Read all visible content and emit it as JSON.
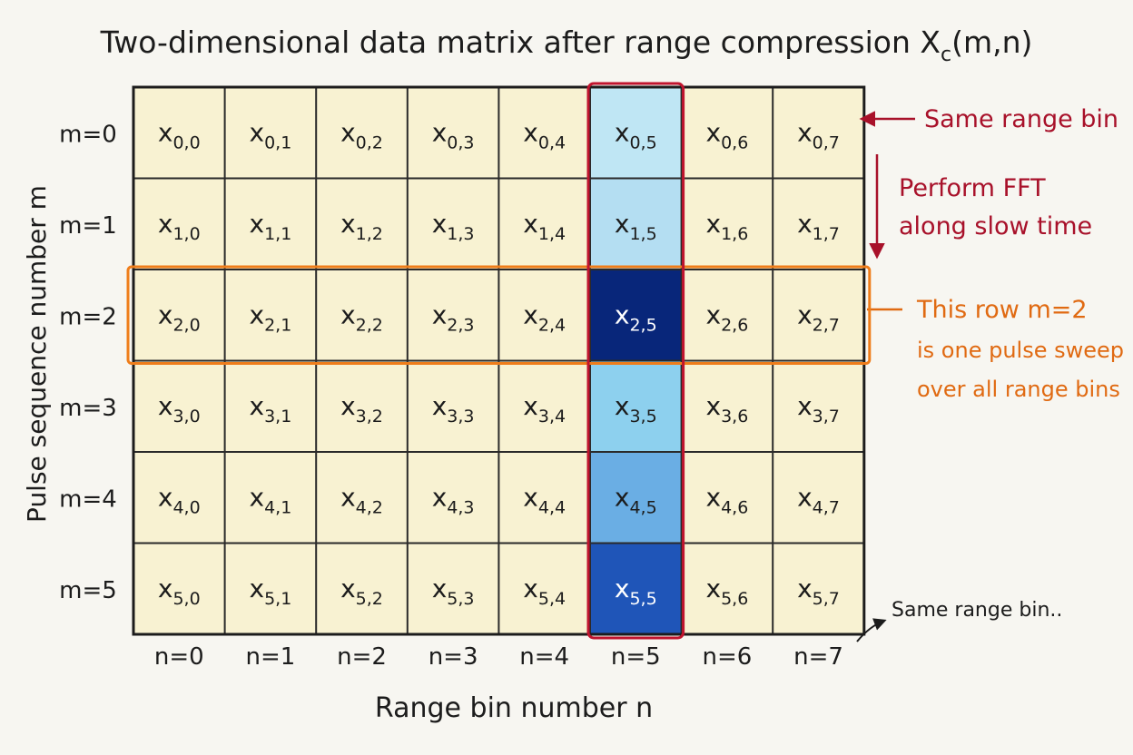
{
  "title": {
    "main": "Two-dimensional data matrix after range compression X",
    "sub": "c",
    "args": "(m,n)"
  },
  "axes": {
    "ylabel": "Pulse sequence number m",
    "xlabel": "Range bin number n"
  },
  "rows": [
    "m=0",
    "m=1",
    "m=2",
    "m=3",
    "m=4",
    "m=5"
  ],
  "cols": [
    "n=0",
    "n=1",
    "n=2",
    "n=3",
    "n=4",
    "n=5",
    "n=6",
    "n=7"
  ],
  "cell_symbol": "x",
  "cells": [
    [
      "0,0",
      "0,1",
      "0,2",
      "0,3",
      "0,4",
      "0,5",
      "0,6",
      "0,7"
    ],
    [
      "1,0",
      "1,1",
      "1,2",
      "1,3",
      "1,4",
      "1,5",
      "1,6",
      "1,7"
    ],
    [
      "2,0",
      "2,1",
      "2,2",
      "2,3",
      "2,4",
      "2,5",
      "2,6",
      "2,7"
    ],
    [
      "3,0",
      "3,1",
      "3,2",
      "3,3",
      "3,4",
      "3,5",
      "3,6",
      "3,7"
    ],
    [
      "4,0",
      "4,1",
      "4,2",
      "4,3",
      "4,4",
      "4,5",
      "4,6",
      "4,7"
    ],
    [
      "5,0",
      "5,1",
      "5,2",
      "5,3",
      "5,4",
      "5,5",
      "5,6",
      "5,7"
    ]
  ],
  "highlight": {
    "column_index": 5,
    "row_index": 2,
    "column_border_color": "#c0142e",
    "row_border_color": "#ef7d1a",
    "column_fill_colors": [
      "#bfe6f4",
      "#b4def2",
      "#08267a",
      "#8dd0ee",
      "#6aaee4",
      "#1f55b8"
    ],
    "light_text_rows": [
      2,
      5
    ],
    "cell_fill_color": "#f8f2d2"
  },
  "annotations": {
    "same_range_bin_top": "Same range bin",
    "fft_line1": "Perform FFT",
    "fft_line2": "along slow time",
    "row_note_line1": "This row m=2",
    "row_note_line2": "is one pulse sweep",
    "row_note_line3": "over all range bins",
    "same_range_bin_bottom": "Same range bin.."
  }
}
